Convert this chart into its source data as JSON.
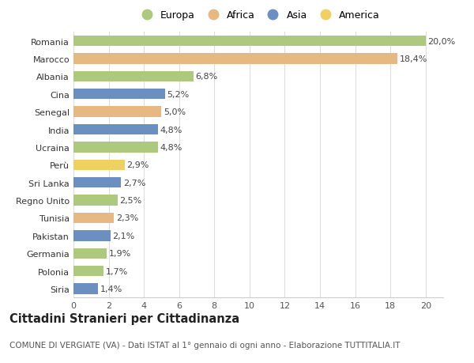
{
  "countries": [
    "Romania",
    "Marocco",
    "Albania",
    "Cina",
    "Senegal",
    "India",
    "Ucraina",
    "Perù",
    "Sri Lanka",
    "Regno Unito",
    "Tunisia",
    "Pakistan",
    "Germania",
    "Polonia",
    "Siria"
  ],
  "values": [
    20.0,
    18.4,
    6.8,
    5.2,
    5.0,
    4.8,
    4.8,
    2.9,
    2.7,
    2.5,
    2.3,
    2.1,
    1.9,
    1.7,
    1.4
  ],
  "labels": [
    "20,0%",
    "18,4%",
    "6,8%",
    "5,2%",
    "5,0%",
    "4,8%",
    "4,8%",
    "2,9%",
    "2,7%",
    "2,5%",
    "2,3%",
    "2,1%",
    "1,9%",
    "1,7%",
    "1,4%"
  ],
  "continents": [
    "Europa",
    "Africa",
    "Europa",
    "Asia",
    "Africa",
    "Asia",
    "Europa",
    "America",
    "Asia",
    "Europa",
    "Africa",
    "Asia",
    "Europa",
    "Europa",
    "Asia"
  ],
  "continent_colors": {
    "Europa": "#adc97e",
    "Africa": "#e8b882",
    "Asia": "#6a8fc0",
    "America": "#f0d060"
  },
  "legend_order": [
    "Europa",
    "Africa",
    "Asia",
    "America"
  ],
  "title": "Cittadini Stranieri per Cittadinanza",
  "subtitle": "COMUNE DI VERGIATE (VA) - Dati ISTAT al 1° gennaio di ogni anno - Elaborazione TUTTITALIA.IT",
  "xlim": [
    0,
    21
  ],
  "xticks": [
    0,
    2,
    4,
    6,
    8,
    10,
    12,
    14,
    16,
    18,
    20
  ],
  "background_color": "#ffffff",
  "plot_bg_color": "#ffffff",
  "bar_height": 0.6,
  "label_fontsize": 8,
  "tick_fontsize": 8,
  "title_fontsize": 10.5,
  "subtitle_fontsize": 7.5
}
